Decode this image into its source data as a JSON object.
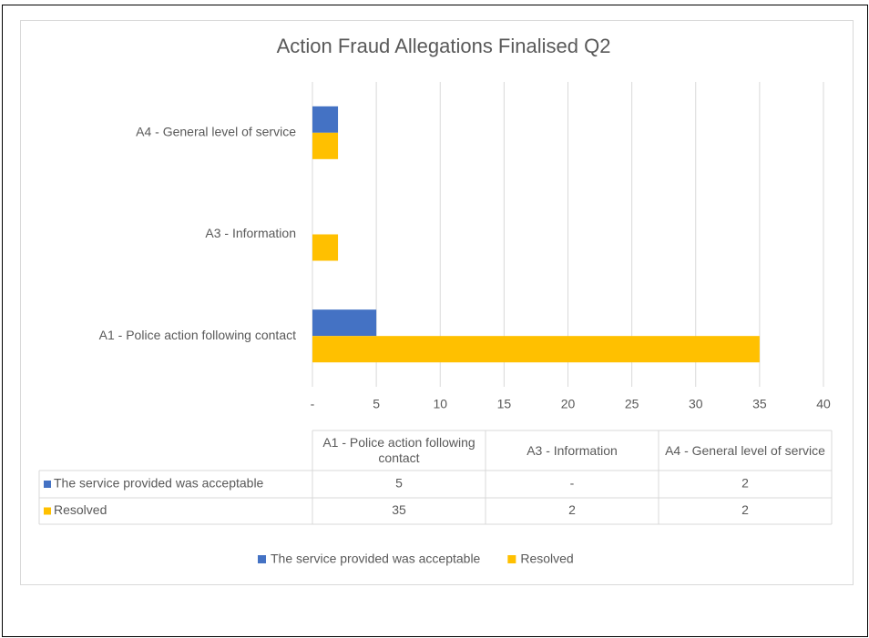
{
  "chart_data": {
    "type": "bar",
    "orientation": "horizontal",
    "title": "Action Fraud Allegations Finalised Q2",
    "categories": [
      "A1 - Police action following contact",
      "A3 - Information",
      "A4 - General level of service"
    ],
    "series": [
      {
        "name": "The service provided was acceptable",
        "color": "#4472c4",
        "values": [
          5,
          0,
          2
        ],
        "value_labels": [
          "5",
          "-",
          "2"
        ]
      },
      {
        "name": "Resolved",
        "color": "#ffc000",
        "values": [
          35,
          2,
          2
        ]
      }
    ],
    "xlim": [
      0,
      40
    ],
    "xticks": [
      {
        "value": 0,
        "label": "-"
      },
      5,
      10,
      15,
      20,
      25,
      30,
      35,
      40
    ],
    "grid": true,
    "legend": "bottom",
    "data_table": true
  }
}
